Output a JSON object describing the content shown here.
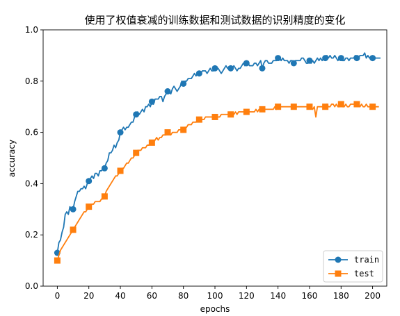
{
  "chart_data": {
    "type": "line",
    "title": "使用了权值衰减的训练数据和测试数据的识别精度的变化",
    "xlabel": "epochs",
    "ylabel": "accuracy",
    "xlim": [
      -9,
      209
    ],
    "ylim": [
      0,
      1.0
    ],
    "xticks": [
      0,
      10,
      20,
      30,
      40,
      50,
      60,
      70,
      80,
      90,
      100,
      110,
      120,
      130,
      140,
      150,
      160,
      170,
      180,
      190,
      200
    ],
    "yticks": [
      0.0,
      0.2,
      0.4,
      0.6,
      0.8,
      1.0
    ],
    "grid": false,
    "legend_position": "lower-right",
    "series": [
      {
        "name": "train",
        "color": "#1f77b4",
        "marker": "circle",
        "marker_every": 10,
        "values": [
          0.13,
          0.17,
          0.18,
          0.21,
          0.23,
          0.28,
          0.29,
          0.28,
          0.31,
          0.3,
          0.3,
          0.33,
          0.35,
          0.37,
          0.37,
          0.38,
          0.38,
          0.39,
          0.38,
          0.4,
          0.41,
          0.42,
          0.43,
          0.42,
          0.44,
          0.44,
          0.43,
          0.45,
          0.45,
          0.46,
          0.46,
          0.48,
          0.49,
          0.52,
          0.52,
          0.53,
          0.55,
          0.54,
          0.56,
          0.57,
          0.6,
          0.61,
          0.62,
          0.61,
          0.62,
          0.62,
          0.63,
          0.64,
          0.64,
          0.66,
          0.67,
          0.68,
          0.67,
          0.68,
          0.69,
          0.68,
          0.7,
          0.7,
          0.71,
          0.7,
          0.72,
          0.71,
          0.73,
          0.73,
          0.73,
          0.74,
          0.74,
          0.72,
          0.74,
          0.75,
          0.76,
          0.76,
          0.75,
          0.77,
          0.78,
          0.77,
          0.76,
          0.77,
          0.78,
          0.8,
          0.79,
          0.8,
          0.8,
          0.81,
          0.81,
          0.81,
          0.82,
          0.83,
          0.82,
          0.83,
          0.83,
          0.83,
          0.84,
          0.84,
          0.84,
          0.83,
          0.84,
          0.85,
          0.84,
          0.84,
          0.85,
          0.85,
          0.85,
          0.84,
          0.83,
          0.84,
          0.85,
          0.86,
          0.85,
          0.85,
          0.85,
          0.85,
          0.86,
          0.85,
          0.84,
          0.85,
          0.85,
          0.86,
          0.87,
          0.86,
          0.87,
          0.87,
          0.86,
          0.86,
          0.86,
          0.87,
          0.87,
          0.86,
          0.87,
          0.88,
          0.85,
          0.87,
          0.88,
          0.88,
          0.87,
          0.87,
          0.87,
          0.88,
          0.88,
          0.88,
          0.89,
          0.89,
          0.88,
          0.89,
          0.88,
          0.88,
          0.88,
          0.87,
          0.88,
          0.88,
          0.87,
          0.88,
          0.88,
          0.88,
          0.88,
          0.89,
          0.89,
          0.88,
          0.87,
          0.87,
          0.88,
          0.87,
          0.88,
          0.87,
          0.88,
          0.89,
          0.88,
          0.89,
          0.88,
          0.89,
          0.89,
          0.9,
          0.89,
          0.9,
          0.89,
          0.89,
          0.9,
          0.89,
          0.88,
          0.89,
          0.89,
          0.88,
          0.88,
          0.89,
          0.89,
          0.88,
          0.89,
          0.89,
          0.89,
          0.9,
          0.89,
          0.89,
          0.9,
          0.9,
          0.9,
          0.91,
          0.89,
          0.9,
          0.89,
          0.89,
          0.89,
          0.89,
          0.89,
          0.89,
          0.89,
          0.89
        ]
      },
      {
        "name": "test",
        "color": "#ff7f0e",
        "marker": "square",
        "marker_every": 10,
        "values": [
          0.1,
          0.12,
          0.14,
          0.15,
          0.16,
          0.17,
          0.18,
          0.19,
          0.2,
          0.21,
          0.22,
          0.23,
          0.24,
          0.25,
          0.26,
          0.27,
          0.28,
          0.29,
          0.29,
          0.3,
          0.31,
          0.31,
          0.32,
          0.32,
          0.33,
          0.33,
          0.33,
          0.33,
          0.34,
          0.34,
          0.35,
          0.37,
          0.38,
          0.39,
          0.4,
          0.41,
          0.42,
          0.43,
          0.43,
          0.44,
          0.45,
          0.46,
          0.46,
          0.47,
          0.48,
          0.48,
          0.49,
          0.5,
          0.5,
          0.51,
          0.52,
          0.53,
          0.53,
          0.53,
          0.54,
          0.54,
          0.54,
          0.55,
          0.55,
          0.56,
          0.56,
          0.56,
          0.57,
          0.58,
          0.57,
          0.58,
          0.58,
          0.59,
          0.59,
          0.59,
          0.6,
          0.6,
          0.59,
          0.6,
          0.6,
          0.6,
          0.6,
          0.61,
          0.61,
          0.61,
          0.61,
          0.62,
          0.62,
          0.63,
          0.63,
          0.63,
          0.64,
          0.64,
          0.64,
          0.65,
          0.65,
          0.65,
          0.65,
          0.65,
          0.66,
          0.66,
          0.66,
          0.66,
          0.66,
          0.66,
          0.66,
          0.66,
          0.66,
          0.66,
          0.67,
          0.67,
          0.67,
          0.67,
          0.67,
          0.67,
          0.67,
          0.67,
          0.67,
          0.68,
          0.67,
          0.68,
          0.68,
          0.68,
          0.68,
          0.68,
          0.68,
          0.68,
          0.68,
          0.68,
          0.68,
          0.68,
          0.69,
          0.68,
          0.69,
          0.69,
          0.69,
          0.69,
          0.69,
          0.69,
          0.69,
          0.69,
          0.69,
          0.69,
          0.7,
          0.69,
          0.7,
          0.7,
          0.7,
          0.7,
          0.7,
          0.7,
          0.7,
          0.7,
          0.7,
          0.7,
          0.7,
          0.7,
          0.7,
          0.7,
          0.7,
          0.7,
          0.7,
          0.7,
          0.7,
          0.7,
          0.7,
          0.7,
          0.69,
          0.7,
          0.66,
          0.7,
          0.7,
          0.7,
          0.7,
          0.7,
          0.7,
          0.71,
          0.7,
          0.7,
          0.71,
          0.71,
          0.7,
          0.71,
          0.7,
          0.7,
          0.71,
          0.7,
          0.7,
          0.71,
          0.7,
          0.7,
          0.71,
          0.71,
          0.71,
          0.71,
          0.71,
          0.71,
          0.7,
          0.71,
          0.7,
          0.7,
          0.71,
          0.7,
          0.7,
          0.7,
          0.7,
          0.7,
          0.7,
          0.7,
          0.7
        ]
      }
    ]
  }
}
